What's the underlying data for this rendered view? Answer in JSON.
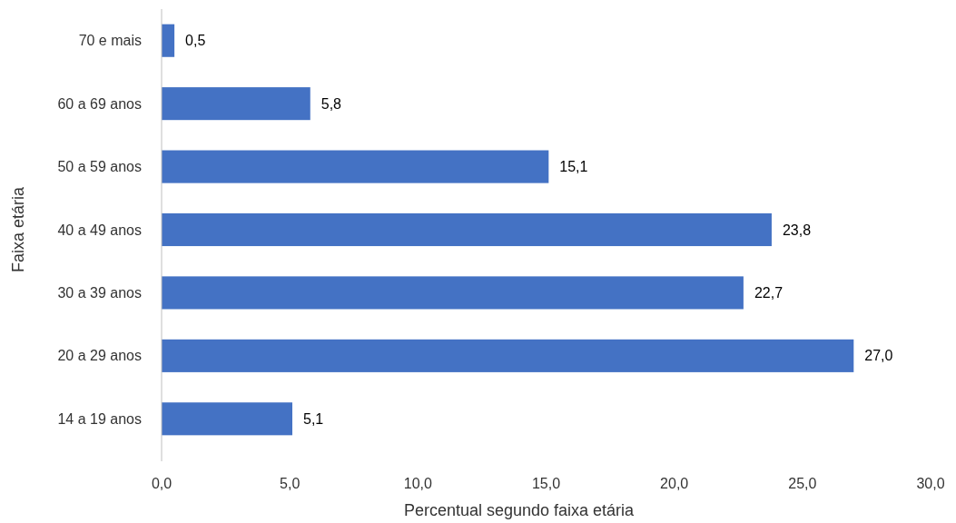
{
  "chart_data": {
    "type": "bar",
    "orientation": "horizontal",
    "xlabel": "Percentual segundo faixa etária",
    "ylabel": "Faixa etária",
    "categories": [
      "70 e mais",
      "60 a 69 anos",
      "50 a 59 anos",
      "40 a 49 anos",
      "30 a 39 anos",
      "20 a 29 anos",
      "14 a 19 anos"
    ],
    "values": [
      0.5,
      5.8,
      15.1,
      23.8,
      22.7,
      27.0,
      5.1
    ],
    "value_labels": [
      "0,5",
      "5,8",
      "15,1",
      "23,8",
      "22,7",
      "27,0",
      "5,1"
    ],
    "color": "#4472c4",
    "xlim": [
      0,
      30
    ],
    "xticks": [
      {
        "value": 0,
        "label": "0,0"
      },
      {
        "value": 5,
        "label": "5,0"
      },
      {
        "value": 10,
        "label": "10,0"
      },
      {
        "value": 15,
        "label": "15,0"
      },
      {
        "value": 20,
        "label": "20,0"
      },
      {
        "value": 25,
        "label": "25,0"
      },
      {
        "value": 30,
        "label": "30,0"
      }
    ]
  }
}
